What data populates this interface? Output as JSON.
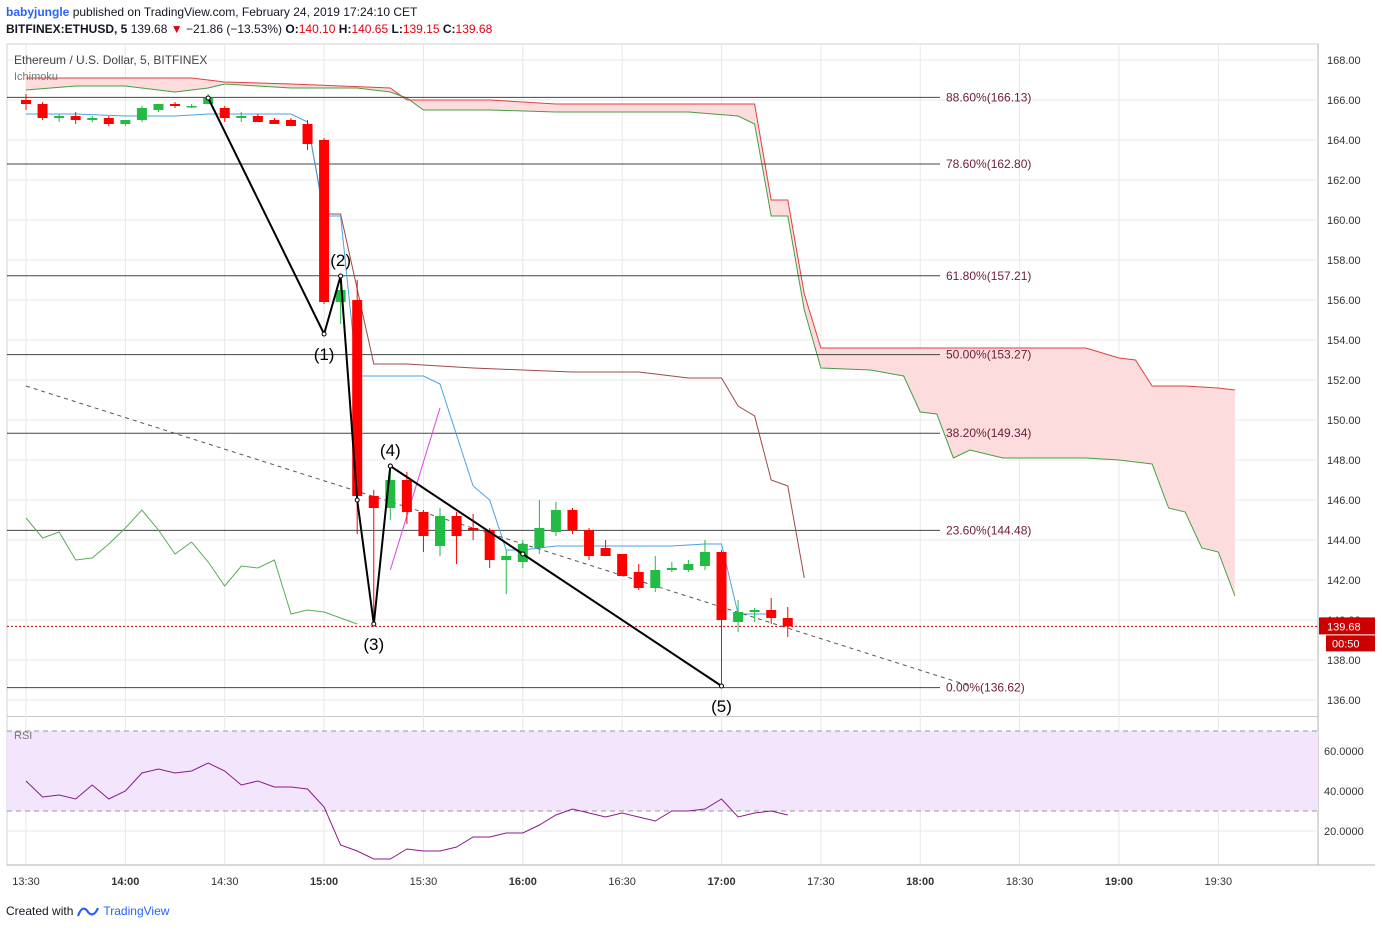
{
  "header": {
    "author": "babyjungle",
    "published_text": "published on TradingView.com, February 24, 2019 17:24:10 CET",
    "symbol": "BITFINEX:ETHUSD, 5",
    "last": "139.68",
    "change": "−21.86 (−13.53%)",
    "open_label": "O:",
    "open": "140.10",
    "high_label": "H:",
    "high": "140.65",
    "low_label": "L:",
    "low": "139.15",
    "close_label": "C:",
    "close": "139.68"
  },
  "footer": {
    "created_with": "Created with",
    "brand": "TradingView"
  },
  "chart_data": {
    "type": "candlestick",
    "title": "Ethereum / U.S. Dollar, 5, BITFINEX",
    "indicator_label": "Ichimoku",
    "rsi_label": "RSI",
    "x_tick_labels": [
      {
        "t": 0,
        "label": "13:30",
        "bold": false
      },
      {
        "t": 30,
        "label": "14:00",
        "bold": true
      },
      {
        "t": 60,
        "label": "14:30",
        "bold": false
      },
      {
        "t": 90,
        "label": "15:00",
        "bold": true
      },
      {
        "t": 120,
        "label": "15:30",
        "bold": false
      },
      {
        "t": 150,
        "label": "16:00",
        "bold": true
      },
      {
        "t": 180,
        "label": "16:30",
        "bold": false
      },
      {
        "t": 210,
        "label": "17:00",
        "bold": true
      },
      {
        "t": 240,
        "label": "17:30",
        "bold": false
      },
      {
        "t": 270,
        "label": "18:00",
        "bold": true
      },
      {
        "t": 300,
        "label": "18:30",
        "bold": false
      },
      {
        "t": 330,
        "label": "19:00",
        "bold": true
      },
      {
        "t": 360,
        "label": "19:30",
        "bold": false
      }
    ],
    "y_ticks": [
      "136.00",
      "138.00",
      "140.00",
      "142.00",
      "144.00",
      "146.00",
      "148.00",
      "150.00",
      "152.00",
      "154.00",
      "156.00",
      "158.00",
      "160.00",
      "162.00",
      "164.00",
      "166.00",
      "168.00"
    ],
    "y_range": [
      135.2,
      168.8
    ],
    "rsi_ticks": [
      "20.0000",
      "40.0000",
      "60.0000"
    ],
    "rsi_range": [
      3,
      77
    ],
    "rsi_band": [
      30,
      70
    ],
    "last_price": "139.68",
    "countdown": "00:50",
    "candles": [
      {
        "t": 0,
        "o": 166.0,
        "h": 166.3,
        "l": 165.5,
        "c": 165.8
      },
      {
        "t": 5,
        "o": 165.8,
        "h": 165.9,
        "l": 165.0,
        "c": 165.1
      },
      {
        "t": 10,
        "o": 165.1,
        "h": 165.3,
        "l": 164.9,
        "c": 165.2
      },
      {
        "t": 15,
        "o": 165.2,
        "h": 165.4,
        "l": 164.8,
        "c": 165.0
      },
      {
        "t": 20,
        "o": 165.0,
        "h": 165.2,
        "l": 164.9,
        "c": 165.1
      },
      {
        "t": 25,
        "o": 165.1,
        "h": 165.2,
        "l": 164.7,
        "c": 164.8
      },
      {
        "t": 30,
        "o": 164.8,
        "h": 165.0,
        "l": 164.7,
        "c": 165.0
      },
      {
        "t": 35,
        "o": 165.0,
        "h": 165.7,
        "l": 164.9,
        "c": 165.6
      },
      {
        "t": 40,
        "o": 165.5,
        "h": 165.8,
        "l": 165.4,
        "c": 165.8
      },
      {
        "t": 45,
        "o": 165.8,
        "h": 165.9,
        "l": 165.6,
        "c": 165.7
      },
      {
        "t": 50,
        "o": 165.7,
        "h": 165.8,
        "l": 165.6,
        "c": 165.7
      },
      {
        "t": 55,
        "o": 165.8,
        "h": 166.3,
        "l": 165.8,
        "c": 166.1
      },
      {
        "t": 60,
        "o": 165.6,
        "h": 165.7,
        "l": 164.9,
        "c": 165.1
      },
      {
        "t": 65,
        "o": 165.1,
        "h": 165.4,
        "l": 164.9,
        "c": 165.2
      },
      {
        "t": 70,
        "o": 165.2,
        "h": 165.3,
        "l": 164.9,
        "c": 164.9
      },
      {
        "t": 75,
        "o": 165.0,
        "h": 165.1,
        "l": 164.8,
        "c": 164.8
      },
      {
        "t": 80,
        "o": 165.0,
        "h": 165.1,
        "l": 164.7,
        "c": 164.7
      },
      {
        "t": 85,
        "o": 164.8,
        "h": 165.0,
        "l": 163.5,
        "c": 163.8
      },
      {
        "t": 90,
        "o": 164.0,
        "h": 164.1,
        "l": 155.8,
        "c": 155.9
      },
      {
        "t": 95,
        "o": 155.9,
        "h": 157.3,
        "l": 154.8,
        "c": 156.5
      },
      {
        "t": 100,
        "o": 156.0,
        "h": 157.0,
        "l": 144.3,
        "c": 146.2
      },
      {
        "t": 105,
        "o": 146.2,
        "h": 146.5,
        "l": 139.8,
        "c": 145.6
      },
      {
        "t": 110,
        "o": 145.6,
        "h": 147.7,
        "l": 145.0,
        "c": 147.0
      },
      {
        "t": 115,
        "o": 147.0,
        "h": 147.4,
        "l": 144.8,
        "c": 145.4
      },
      {
        "t": 120,
        "o": 145.4,
        "h": 145.5,
        "l": 143.4,
        "c": 144.2
      },
      {
        "t": 125,
        "o": 143.7,
        "h": 145.6,
        "l": 143.2,
        "c": 145.2
      },
      {
        "t": 130,
        "o": 145.2,
        "h": 145.4,
        "l": 142.8,
        "c": 144.2
      },
      {
        "t": 135,
        "o": 144.6,
        "h": 145.3,
        "l": 144.0,
        "c": 144.5
      },
      {
        "t": 140,
        "o": 144.5,
        "h": 144.6,
        "l": 142.6,
        "c": 143.0
      },
      {
        "t": 145,
        "o": 143.0,
        "h": 143.5,
        "l": 141.3,
        "c": 143.2
      },
      {
        "t": 150,
        "o": 142.9,
        "h": 144.0,
        "l": 142.6,
        "c": 143.8
      },
      {
        "t": 155,
        "o": 143.6,
        "h": 146.0,
        "l": 143.3,
        "c": 144.6
      },
      {
        "t": 160,
        "o": 144.4,
        "h": 145.9,
        "l": 144.2,
        "c": 145.5
      },
      {
        "t": 165,
        "o": 145.5,
        "h": 145.6,
        "l": 144.3,
        "c": 144.5
      },
      {
        "t": 170,
        "o": 144.5,
        "h": 144.6,
        "l": 143.0,
        "c": 143.2
      },
      {
        "t": 175,
        "o": 143.6,
        "h": 144.0,
        "l": 143.2,
        "c": 143.2
      },
      {
        "t": 180,
        "o": 143.3,
        "h": 143.3,
        "l": 142.3,
        "c": 142.2
      },
      {
        "t": 185,
        "o": 142.4,
        "h": 142.8,
        "l": 141.5,
        "c": 141.6
      },
      {
        "t": 190,
        "o": 141.6,
        "h": 143.2,
        "l": 141.4,
        "c": 142.5
      },
      {
        "t": 195,
        "o": 142.5,
        "h": 142.9,
        "l": 142.4,
        "c": 142.6
      },
      {
        "t": 200,
        "o": 142.5,
        "h": 143.0,
        "l": 142.4,
        "c": 142.8
      },
      {
        "t": 205,
        "o": 142.7,
        "h": 144.0,
        "l": 142.5,
        "c": 143.4
      },
      {
        "t": 210,
        "o": 143.4,
        "h": 143.5,
        "l": 136.7,
        "c": 140.0
      },
      {
        "t": 215,
        "o": 139.9,
        "h": 141.0,
        "l": 139.4,
        "c": 140.4
      },
      {
        "t": 220,
        "o": 140.4,
        "h": 140.6,
        "l": 139.9,
        "c": 140.5
      },
      {
        "t": 225,
        "o": 140.5,
        "h": 141.1,
        "l": 139.8,
        "c": 140.1
      },
      {
        "t": 230,
        "o": 140.1,
        "h": 140.65,
        "l": 139.15,
        "c": 139.68
      }
    ],
    "ichimoku": {
      "lead_a": [
        [
          0,
          166.5
        ],
        [
          15,
          166.7
        ],
        [
          30,
          166.7
        ],
        [
          45,
          166.4
        ],
        [
          55,
          166.6
        ],
        [
          60,
          166.8
        ],
        [
          70,
          166.7
        ],
        [
          80,
          166.6
        ],
        [
          100,
          166.6
        ],
        [
          110,
          166.4
        ],
        [
          115,
          166.1
        ],
        [
          120,
          165.5
        ],
        [
          140,
          165.5
        ],
        [
          160,
          165.4
        ],
        [
          180,
          165.4
        ],
        [
          200,
          165.4
        ],
        [
          215,
          165.2
        ],
        [
          220,
          164.8
        ],
        [
          225,
          160.2
        ],
        [
          230,
          160.2
        ],
        [
          235,
          155.5
        ],
        [
          240,
          152.6
        ],
        [
          255,
          152.5
        ],
        [
          265,
          152.2
        ],
        [
          270,
          150.4
        ],
        [
          275,
          150.3
        ],
        [
          280,
          148.1
        ],
        [
          285,
          148.5
        ],
        [
          295,
          148.1
        ],
        [
          320,
          148.1
        ],
        [
          330,
          148.0
        ],
        [
          340,
          147.8
        ],
        [
          345,
          145.6
        ],
        [
          350,
          145.4
        ],
        [
          355,
          143.6
        ],
        [
          360,
          143.4
        ],
        [
          365,
          141.2
        ]
      ],
      "lead_b": [
        [
          0,
          167.1
        ],
        [
          15,
          167.1
        ],
        [
          30,
          167.1
        ],
        [
          50,
          167.1
        ],
        [
          60,
          166.9
        ],
        [
          80,
          166.8
        ],
        [
          110,
          166.6
        ],
        [
          115,
          166.0
        ],
        [
          120,
          166.0
        ],
        [
          140,
          166.0
        ],
        [
          160,
          165.8
        ],
        [
          180,
          165.8
        ],
        [
          200,
          165.8
        ],
        [
          220,
          165.8
        ],
        [
          225,
          161.0
        ],
        [
          230,
          161.0
        ],
        [
          235,
          156.3
        ],
        [
          240,
          153.6
        ],
        [
          255,
          153.6
        ],
        [
          280,
          153.6
        ],
        [
          300,
          153.6
        ],
        [
          320,
          153.6
        ],
        [
          330,
          153.1
        ],
        [
          335,
          153.0
        ],
        [
          340,
          151.7
        ],
        [
          350,
          151.7
        ],
        [
          360,
          151.6
        ],
        [
          365,
          151.5
        ]
      ],
      "tenkan": [
        [
          0,
          165.3
        ],
        [
          15,
          165.3
        ],
        [
          30,
          165.2
        ],
        [
          45,
          165.2
        ],
        [
          55,
          165.3
        ],
        [
          60,
          165.3
        ],
        [
          80,
          165.3
        ],
        [
          85,
          164.9
        ],
        [
          90,
          160.2
        ],
        [
          95,
          160.2
        ],
        [
          100,
          152.2
        ],
        [
          105,
          152.2
        ],
        [
          120,
          152.2
        ],
        [
          125,
          151.8
        ],
        [
          135,
          146.7
        ],
        [
          140,
          146.0
        ],
        [
          145,
          143.5
        ],
        [
          150,
          143.5
        ],
        [
          160,
          143.7
        ],
        [
          170,
          143.7
        ],
        [
          180,
          143.7
        ],
        [
          195,
          143.7
        ],
        [
          205,
          143.8
        ],
        [
          210,
          143.8
        ],
        [
          215,
          140.3
        ],
        [
          225,
          140.3
        ]
      ],
      "kijun": [
        [
          85,
          164.9
        ],
        [
          90,
          160.3
        ],
        [
          95,
          160.3
        ],
        [
          105,
          152.8
        ],
        [
          115,
          152.8
        ],
        [
          135,
          152.6
        ],
        [
          150,
          152.5
        ],
        [
          165,
          152.4
        ],
        [
          175,
          152.4
        ],
        [
          185,
          152.4
        ],
        [
          200,
          152.1
        ],
        [
          210,
          152.1
        ],
        [
          215,
          150.7
        ],
        [
          220,
          150.2
        ],
        [
          225,
          147.0
        ],
        [
          230,
          146.7
        ],
        [
          235,
          142.1
        ]
      ],
      "lagging": [
        [
          0,
          145.1
        ],
        [
          5,
          144.1
        ],
        [
          10,
          144.4
        ],
        [
          15,
          143.0
        ],
        [
          20,
          143.1
        ],
        [
          25,
          143.8
        ],
        [
          30,
          144.6
        ],
        [
          35,
          145.5
        ],
        [
          40,
          144.5
        ],
        [
          45,
          143.3
        ],
        [
          50,
          143.9
        ],
        [
          55,
          142.9
        ],
        [
          60,
          141.7
        ],
        [
          65,
          142.7
        ],
        [
          70,
          142.6
        ],
        [
          75,
          143.0
        ],
        [
          80,
          140.3
        ],
        [
          85,
          140.5
        ],
        [
          90,
          140.4
        ],
        [
          95,
          140.1
        ],
        [
          100,
          139.8
        ]
      ],
      "spike": [
        [
          110,
          142.5
        ],
        [
          125,
          150.6
        ]
      ]
    },
    "wave_lines": [
      {
        "points": [
          [
            55,
            166.1
          ],
          [
            90,
            154.3
          ],
          [
            95,
            157.2
          ],
          [
            100,
            146.0
          ],
          [
            105,
            139.8
          ],
          [
            110,
            147.7
          ]
        ]
      },
      {
        "points": [
          [
            110,
            147.7
          ],
          [
            150,
            143.3
          ],
          [
            210,
            136.7
          ]
        ]
      }
    ],
    "wave_labels": [
      {
        "t": 90,
        "y": 154.3,
        "label": "(1)",
        "pos": "below"
      },
      {
        "t": 95,
        "y": 157.2,
        "label": "(2)",
        "pos": "above"
      },
      {
        "t": 105,
        "y": 139.8,
        "label": "(3)",
        "pos": "below"
      },
      {
        "t": 110,
        "y": 147.7,
        "label": "(4)",
        "pos": "above"
      },
      {
        "t": 210,
        "y": 136.7,
        "label": "(5)",
        "pos": "below"
      }
    ],
    "trendline_dashed": [
      [
        0,
        151.7
      ],
      [
        285,
        136.7
      ]
    ],
    "fib_levels": [
      {
        "value": 166.13,
        "label": "88.60%(166.13)"
      },
      {
        "value": 162.8,
        "label": "78.60%(162.80)"
      },
      {
        "value": 157.21,
        "label": "61.80%(157.21)"
      },
      {
        "value": 153.27,
        "label": "50.00%(153.27)"
      },
      {
        "value": 149.34,
        "label": "38.20%(149.34)"
      },
      {
        "value": 144.48,
        "label": "23.60%(144.48)"
      },
      {
        "value": 136.62,
        "label": "0.00%(136.62)"
      }
    ],
    "rsi": [
      [
        0,
        45
      ],
      [
        5,
        37
      ],
      [
        10,
        38
      ],
      [
        15,
        36
      ],
      [
        20,
        43
      ],
      [
        25,
        36
      ],
      [
        30,
        40
      ],
      [
        35,
        49
      ],
      [
        40,
        51
      ],
      [
        45,
        49
      ],
      [
        50,
        50
      ],
      [
        55,
        54
      ],
      [
        60,
        50
      ],
      [
        65,
        43
      ],
      [
        70,
        45
      ],
      [
        75,
        42
      ],
      [
        80,
        42
      ],
      [
        85,
        41
      ],
      [
        90,
        32
      ],
      [
        95,
        13
      ],
      [
        100,
        10
      ],
      [
        105,
        6
      ],
      [
        110,
        6
      ],
      [
        115,
        11
      ],
      [
        120,
        10
      ],
      [
        125,
        10
      ],
      [
        130,
        12
      ],
      [
        135,
        17
      ],
      [
        140,
        17
      ],
      [
        145,
        19
      ],
      [
        150,
        19
      ],
      [
        155,
        23
      ],
      [
        160,
        28
      ],
      [
        165,
        31
      ],
      [
        170,
        29
      ],
      [
        175,
        27
      ],
      [
        180,
        29
      ],
      [
        185,
        27
      ],
      [
        190,
        25
      ],
      [
        195,
        30
      ],
      [
        200,
        30
      ],
      [
        205,
        31
      ],
      [
        210,
        36
      ],
      [
        215,
        27
      ],
      [
        220,
        29
      ],
      [
        225,
        30
      ],
      [
        230,
        28
      ]
    ],
    "colors": {
      "up": "#22bb44",
      "down": "#ff0000",
      "grid": "#e8e8e8",
      "fib_line": "#444444",
      "fib_text": "#6b1d3b",
      "tenkan": "#4aa3df",
      "kijun": "#a04848",
      "lagging": "#5aad5a",
      "lead_a": "#44a044",
      "lead_b": "#e04040",
      "cloud": "#fcdcdc",
      "rsi_line": "#8b1a8b",
      "rsi_band_fill": "#f3e5fb",
      "last_price": "#cc0000"
    }
  }
}
